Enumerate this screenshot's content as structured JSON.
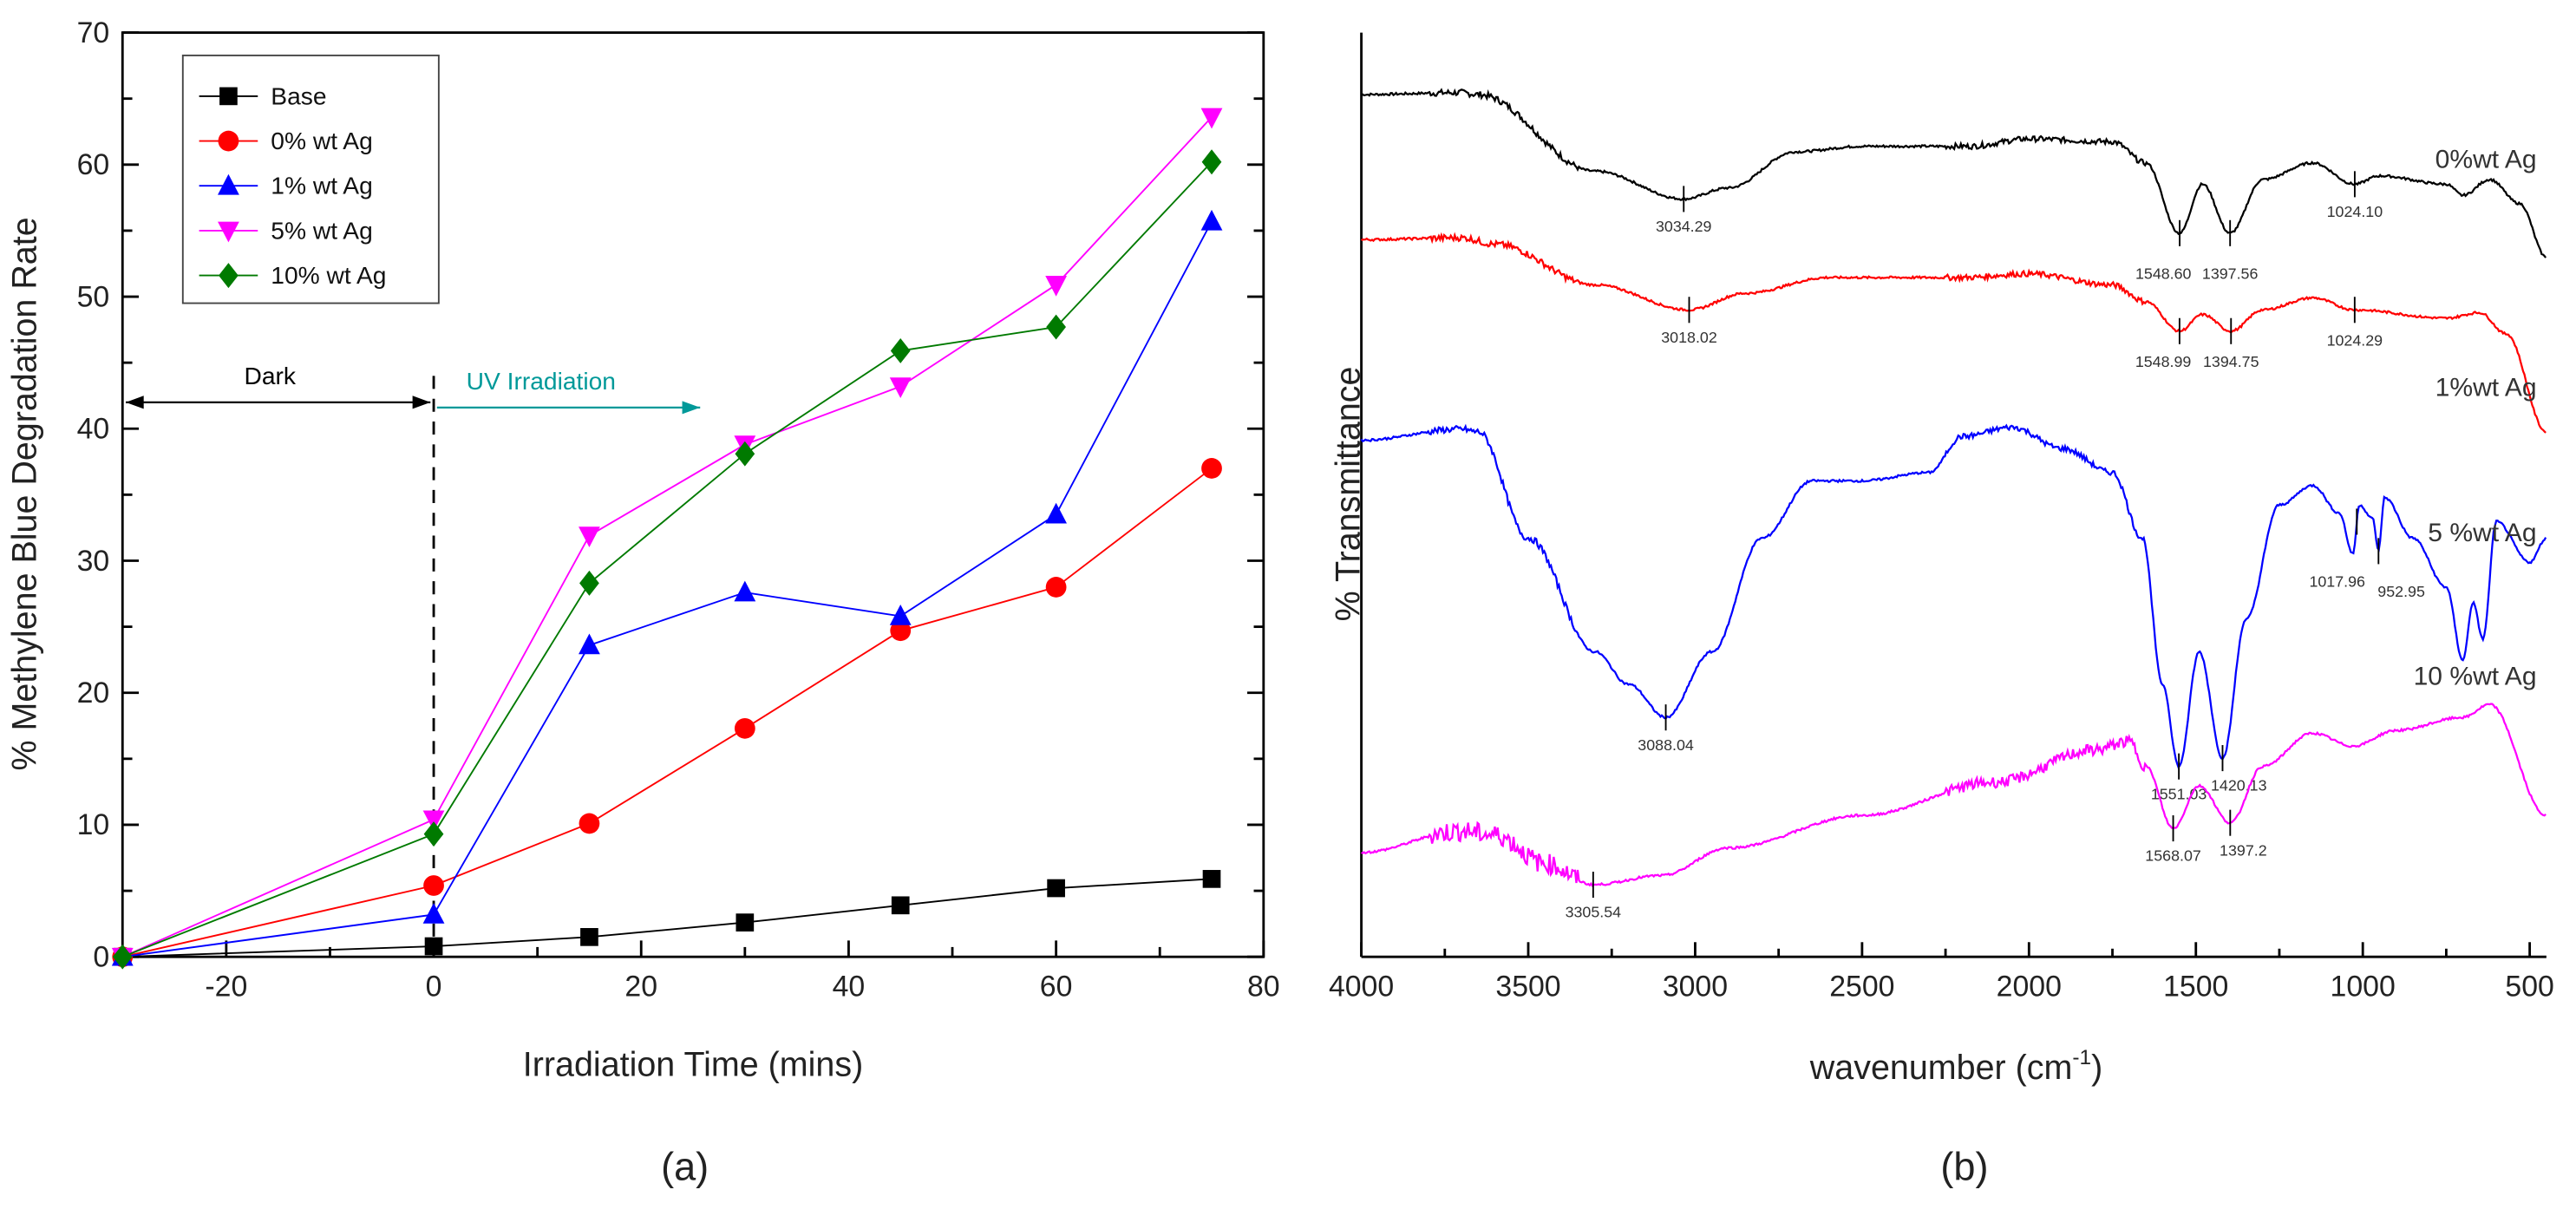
{
  "chart_data": [
    {
      "type": "line",
      "panel_label": "(a)",
      "title": "",
      "xlabel": "Irradiation Time (mins)",
      "ylabel": "% Methylene Blue Degradation Rate",
      "xlim": [
        -30,
        80
      ],
      "ylim": [
        0,
        70
      ],
      "xticks": [
        -20,
        0,
        20,
        40,
        60,
        80
      ],
      "yticks": [
        0,
        10,
        20,
        30,
        40,
        50,
        60,
        70
      ],
      "grid": false,
      "legend_position": "top-left",
      "x": [
        -30,
        0,
        15,
        30,
        45,
        60,
        75
      ],
      "series": [
        {
          "name": "Base",
          "color": "#000000",
          "marker": "square",
          "values": [
            0,
            0.8,
            1.5,
            2.6,
            3.9,
            5.2,
            5.9
          ]
        },
        {
          "name": "0% wt Ag",
          "color": "#ff0000",
          "marker": "circle",
          "values": [
            0,
            5.4,
            10.1,
            17.3,
            24.7,
            28.0,
            37.0
          ]
        },
        {
          "name": "1% wt Ag",
          "color": "#0000ff",
          "marker": "triangle-up",
          "values": [
            0,
            3.2,
            23.6,
            27.6,
            25.8,
            33.5,
            55.7
          ]
        },
        {
          "name": "5% wt Ag",
          "color": "#ff00ff",
          "marker": "triangle-down",
          "values": [
            0,
            10.4,
            31.9,
            38.8,
            43.2,
            50.9,
            63.6
          ]
        },
        {
          "name": "10% wt Ag",
          "color": "#007a00",
          "marker": "diamond",
          "values": [
            0,
            9.3,
            28.3,
            38.1,
            45.9,
            47.7,
            60.2
          ]
        }
      ],
      "annotations": [
        {
          "text": "Dark",
          "from_x": -30,
          "to_x": 0,
          "y": 42,
          "color": "#000000"
        },
        {
          "text": "UV Irradiation",
          "from_x": 0,
          "to_x": 26,
          "y": 41.6,
          "color": "#009999"
        }
      ],
      "vline": {
        "x": 0,
        "y_top": 44,
        "style": "dashed"
      }
    },
    {
      "type": "line",
      "panel_label": "(b)",
      "title": "",
      "xlabel_parts": [
        "wavenumber (cm",
        "-1",
        ")"
      ],
      "ylabel": "% Transmittance",
      "xlim": [
        4000,
        450
      ],
      "ylim": [
        0,
        100
      ],
      "xticks": [
        4000,
        3500,
        3000,
        2500,
        2000,
        1500,
        1000,
        500
      ],
      "grid": false,
      "series": [
        {
          "name": "0%wt Ag",
          "color": "#000000",
          "points": [
            [
              4000,
              93.3
            ],
            [
              3700,
              93.5
            ],
            [
              3650,
              93.3
            ],
            [
              3300,
              85.0
            ],
            [
              3034,
              82.0
            ],
            [
              2900,
              83.2
            ],
            [
              2700,
              87.1
            ],
            [
              2500,
              87.7
            ],
            [
              2180,
              87.7
            ],
            [
              2000,
              88.5
            ],
            [
              1750,
              88.2
            ],
            [
              1650,
              85.9
            ],
            [
              1549,
              78.3
            ],
            [
              1480,
              83.6
            ],
            [
              1398,
              78.3
            ],
            [
              1300,
              84.1
            ],
            [
              1150,
              85.9
            ],
            [
              1024,
              83.6
            ],
            [
              950,
              84.5
            ],
            [
              750,
              83.6
            ],
            [
              700,
              82.4
            ],
            [
              620,
              84.1
            ],
            [
              530,
              81.5
            ],
            [
              450,
              75.7
            ]
          ],
          "peaks": [
            {
              "x": 3034.29,
              "label": "3034.29"
            },
            {
              "x": 1548.6,
              "label": "1548.60"
            },
            {
              "x": 1397.56,
              "label": "1397.56"
            },
            {
              "x": 1024.1,
              "label": "1024.10"
            }
          ]
        },
        {
          "name": "1%wt Ag",
          "color": "#ff0000",
          "points": [
            [
              4000,
              77.6
            ],
            [
              3700,
              77.8
            ],
            [
              3600,
              77.1
            ],
            [
              3300,
              72.7
            ],
            [
              3018,
              70.0
            ],
            [
              2850,
              71.8
            ],
            [
              2600,
              73.5
            ],
            [
              2200,
              73.5
            ],
            [
              2000,
              73.9
            ],
            [
              1750,
              72.7
            ],
            [
              1650,
              70.9
            ],
            [
              1549,
              67.7
            ],
            [
              1480,
              69.5
            ],
            [
              1395,
              67.7
            ],
            [
              1300,
              70.0
            ],
            [
              1150,
              71.3
            ],
            [
              1024,
              70.0
            ],
            [
              750,
              69.1
            ],
            [
              650,
              69.7
            ],
            [
              570,
              67.4
            ],
            [
              450,
              56.8
            ]
          ],
          "peaks": [
            {
              "x": 3018.02,
              "label": "3018.02"
            },
            {
              "x": 1548.99,
              "label": "1548.99"
            },
            {
              "x": 1394.75,
              "label": "1394.75"
            },
            {
              "x": 1024.29,
              "label": "1024.29"
            }
          ]
        },
        {
          "name": "5 %wt Ag",
          "color": "#0000ff",
          "points": [
            [
              4000,
              55.9
            ],
            [
              3700,
              57.1
            ],
            [
              3650,
              56.8
            ],
            [
              3500,
              45.3
            ],
            [
              3300,
              33.0
            ],
            [
              3200,
              29.5
            ],
            [
              3088,
              25.9
            ],
            [
              2950,
              33.0
            ],
            [
              2800,
              45.3
            ],
            [
              2650,
              51.5
            ],
            [
              2500,
              51.5
            ],
            [
              2300,
              52.4
            ],
            [
              2200,
              56.3
            ],
            [
              2050,
              57.3
            ],
            [
              1900,
              55.0
            ],
            [
              1750,
              52.4
            ],
            [
              1660,
              45.3
            ],
            [
              1600,
              29.5
            ],
            [
              1551,
              20.6
            ],
            [
              1490,
              33.0
            ],
            [
              1420,
              21.5
            ],
            [
              1350,
              36.5
            ],
            [
              1250,
              48.9
            ],
            [
              1150,
              51.0
            ],
            [
              1070,
              48.0
            ],
            [
              1030,
              43.6
            ],
            [
              1010,
              48.9
            ],
            [
              970,
              47.4
            ],
            [
              953,
              43.9
            ],
            [
              935,
              49.7
            ],
            [
              850,
              45.3
            ],
            [
              750,
              40.0
            ],
            [
              700,
              32.1
            ],
            [
              670,
              38.3
            ],
            [
              640,
              34.4
            ],
            [
              600,
              47.1
            ],
            [
              500,
              42.7
            ],
            [
              450,
              45.3
            ]
          ],
          "peaks": [
            {
              "x": 3088.04,
              "label": "3088.04"
            },
            {
              "x": 1551.03,
              "label": "1551.03"
            },
            {
              "x": 1420.13,
              "label": "1420.13"
            },
            {
              "x": 1017.96,
              "label": "1017.96"
            },
            {
              "x": 952.95,
              "label": "952.95"
            }
          ]
        },
        {
          "name": "10 %wt Ag",
          "color": "#ff00ff",
          "points": [
            [
              4000,
              11.3
            ],
            [
              3700,
              13.6
            ],
            [
              3600,
              13.2
            ],
            [
              3450,
              10.1
            ],
            [
              3305,
              7.8
            ],
            [
              3100,
              8.8
            ],
            [
              2900,
              11.8
            ],
            [
              2500,
              15.3
            ],
            [
              2100,
              18.9
            ],
            [
              1800,
              22.4
            ],
            [
              1700,
              23.3
            ],
            [
              1650,
              20.6
            ],
            [
              1568,
              13.9
            ],
            [
              1490,
              18.5
            ],
            [
              1397,
              14.5
            ],
            [
              1300,
              20.6
            ],
            [
              1150,
              24.2
            ],
            [
              1030,
              22.8
            ],
            [
              900,
              24.5
            ],
            [
              700,
              25.9
            ],
            [
              620,
              27.3
            ],
            [
              450,
              15.3
            ]
          ],
          "peaks": [
            {
              "x": 3305.54,
              "label": "3305.54"
            },
            {
              "x": 1568.07,
              "label": "1568.07"
            },
            {
              "x": 1397.2,
              "label": "1397.2"
            }
          ]
        }
      ]
    }
  ]
}
